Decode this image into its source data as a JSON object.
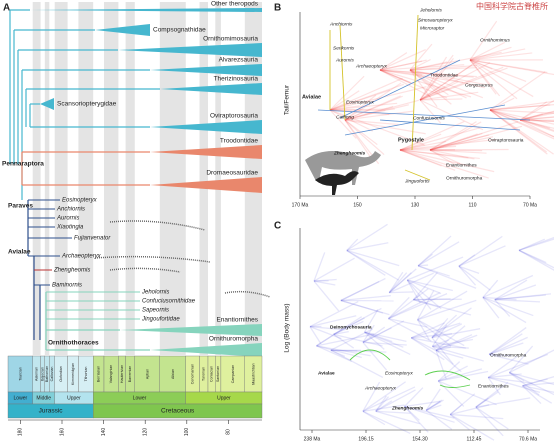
{
  "watermark": "中国科学院古脊椎所",
  "panel_a": {
    "label": "A",
    "clades": [
      "Other theropods",
      "Compsognathidae",
      "Ornithomimosauria",
      "Alvarezsauria",
      "Therizinosauria",
      "Scansoriopterygidae",
      "Oviraptorosauria",
      "Troodontidae",
      "Dromaeosauridae",
      "Enantiornithes",
      "Ornithuromorpha"
    ],
    "taxa": [
      "Eosinopteryx",
      "Anchiornis",
      "Aurornis",
      "Xiaotingia",
      "Fujianvenator",
      "Archaeopteryx",
      "Zhengheomis",
      "Baminornis",
      "Jeholornis",
      "Confuciusornithidae",
      "Sapeornis",
      "Jingoufortidae"
    ],
    "node_labels": [
      "Pennaraptora",
      "Paraves",
      "Avialae",
      "Ornithothoraces"
    ],
    "timescale": {
      "stages": [
        "Toarcian",
        "Aalenian",
        "Bajocian",
        "Bathonian",
        "Callovian",
        "Oxfordian",
        "Kimmeridgian",
        "Tithonian",
        "Berriasian",
        "Valanginian",
        "Hauterivian",
        "Barremian",
        "Aptian",
        "Albian",
        "Cenomanian",
        "Turonian",
        "Coniacian",
        "Santonian",
        "Campanian",
        "Maastrichtian"
      ],
      "epochs": [
        "Lower",
        "Middle",
        "Upper",
        "Lower",
        "Upper"
      ],
      "periods": [
        "Jurassic",
        "Cretaceous"
      ],
      "ticks": [
        180,
        160,
        140,
        120,
        100,
        80
      ]
    }
  },
  "panel_b": {
    "label": "B",
    "y_label": "Tail/Femur",
    "x_ticks": [
      "170 Ma",
      "150",
      "130",
      "110",
      "70 Ma"
    ],
    "labels": [
      "Anchiornis",
      "Serikornis",
      "Aurornis",
      "Archaeopteryx",
      "Eosinopteryx",
      "Caihong",
      "Avialae",
      "Zhengheomis",
      "Jeholornis",
      "Sinosauropteryx",
      "Microraptor",
      "Troodontidae",
      "Ornithomimus",
      "Gorgosaurus",
      "Oviraptorosauria",
      "Pygostyle",
      "Confuciusornis",
      "Enantiornithes",
      "Jinguofortis",
      "Ornithuromorpha"
    ]
  },
  "panel_c": {
    "label": "C",
    "y_label": "Log (Body mass)",
    "x_ticks": [
      "238 Ma",
      "196.15",
      "154.30",
      "112.45",
      "70.6 Ma"
    ],
    "labels": [
      "Deinonychosauria",
      "Avialae",
      "Eosinopteryx",
      "Archaeopteryx",
      "Zhengheomis",
      "Enantiornithes",
      "Ornithuromorpha"
    ]
  }
}
